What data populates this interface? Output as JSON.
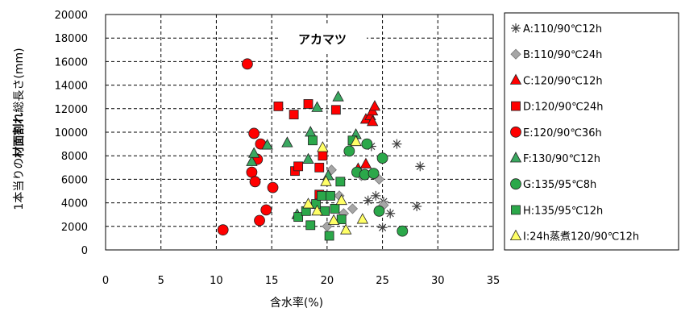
{
  "chart_data": {
    "type": "scatter",
    "title": "アカマツ",
    "xlabel": "含水率(%)",
    "ylabel_parts": [
      "1本当りの",
      "材面割れ",
      "総長さ(mm)"
    ],
    "xlim": [
      0,
      35
    ],
    "ylim": [
      0,
      20000
    ],
    "x_ticks": [
      0,
      5,
      10,
      15,
      20,
      25,
      30,
      35
    ],
    "y_ticks": [
      0,
      2000,
      4000,
      6000,
      8000,
      10000,
      12000,
      14000,
      16000,
      18000,
      20000
    ],
    "grid": true,
    "legend_position": "right",
    "series": [
      {
        "name": "A:110/90℃12h",
        "marker": "star",
        "color": "#404040",
        "points": [
          [
            23.7,
            4200
          ],
          [
            24.4,
            4600
          ],
          [
            24.0,
            8800
          ],
          [
            25.1,
            4100
          ],
          [
            25.7,
            3100
          ],
          [
            26.3,
            9000
          ],
          [
            28.1,
            3700
          ],
          [
            28.4,
            7100
          ],
          [
            25.0,
            1900
          ]
        ]
      },
      {
        "name": "B:110/90℃24h",
        "marker": "diamond",
        "color": "#a6a6a6",
        "points": [
          [
            20.0,
            2000
          ],
          [
            20.4,
            6800
          ],
          [
            21.1,
            4600
          ],
          [
            21.5,
            3100
          ],
          [
            22.3,
            3500
          ],
          [
            23.1,
            6300
          ],
          [
            24.7,
            6000
          ],
          [
            25.1,
            3800
          ]
        ]
      },
      {
        "name": "C:120/90℃12h",
        "marker": "triangle",
        "color": "#ff0000",
        "points": [
          [
            22.8,
            6900
          ],
          [
            23.5,
            7300
          ],
          [
            23.5,
            11100
          ],
          [
            23.9,
            11400
          ],
          [
            24.1,
            11800
          ],
          [
            24.3,
            12200
          ],
          [
            24.1,
            10900
          ]
        ]
      },
      {
        "name": "D:120/90℃24h",
        "marker": "square",
        "color": "#ff0000",
        "points": [
          [
            15.6,
            12200
          ],
          [
            17.0,
            11500
          ],
          [
            17.1,
            6700
          ],
          [
            17.4,
            7100
          ],
          [
            18.3,
            12400
          ],
          [
            19.3,
            7000
          ],
          [
            19.6,
            8000
          ],
          [
            20.8,
            11900
          ],
          [
            19.3,
            4700
          ]
        ]
      },
      {
        "name": "E:120/90℃36h",
        "marker": "circle",
        "color": "#ff0000",
        "points": [
          [
            10.6,
            1700
          ],
          [
            12.8,
            15800
          ],
          [
            13.2,
            6600
          ],
          [
            13.4,
            9900
          ],
          [
            13.5,
            5800
          ],
          [
            13.7,
            7700
          ],
          [
            13.9,
            2500
          ],
          [
            14.0,
            9000
          ],
          [
            14.5,
            3400
          ],
          [
            15.1,
            5300
          ]
        ]
      },
      {
        "name": "F:130/90℃12h",
        "marker": "triangle",
        "color": "#3aa860",
        "points": [
          [
            13.2,
            7500
          ],
          [
            13.4,
            8200
          ],
          [
            14.6,
            8900
          ],
          [
            16.4,
            9100
          ],
          [
            17.3,
            3000
          ],
          [
            18.3,
            7700
          ],
          [
            18.5,
            10000
          ],
          [
            19.1,
            12100
          ],
          [
            20.1,
            6300
          ],
          [
            21.0,
            13000
          ],
          [
            22.6,
            9800
          ]
        ]
      },
      {
        "name": "G:135/95℃8h",
        "marker": "circle",
        "color": "#2ba84a",
        "points": [
          [
            22.0,
            8400
          ],
          [
            22.7,
            6600
          ],
          [
            23.4,
            6400
          ],
          [
            23.6,
            9000
          ],
          [
            24.2,
            6500
          ],
          [
            24.7,
            3300
          ],
          [
            25.0,
            7800
          ],
          [
            26.8,
            1600
          ]
        ]
      },
      {
        "name": "H:135/95℃12h",
        "marker": "square",
        "color": "#2ba84a",
        "points": [
          [
            17.4,
            2800
          ],
          [
            18.1,
            3300
          ],
          [
            18.5,
            2100
          ],
          [
            18.7,
            9300
          ],
          [
            19.0,
            3900
          ],
          [
            19.5,
            4600
          ],
          [
            19.8,
            3300
          ],
          [
            20.2,
            1200
          ],
          [
            20.3,
            4600
          ],
          [
            20.7,
            3500
          ],
          [
            21.2,
            5800
          ],
          [
            21.3,
            2600
          ],
          [
            22.3,
            9300
          ]
        ]
      },
      {
        "name": "I:24h蒸煮120/90℃12h",
        "marker": "triangle",
        "color": "#ffff66",
        "points": [
          [
            18.3,
            3900
          ],
          [
            19.1,
            3300
          ],
          [
            19.6,
            8700
          ],
          [
            19.9,
            5800
          ],
          [
            20.6,
            2500
          ],
          [
            21.3,
            4200
          ],
          [
            21.7,
            1700
          ],
          [
            22.6,
            9200
          ],
          [
            23.2,
            2600
          ]
        ]
      }
    ]
  }
}
